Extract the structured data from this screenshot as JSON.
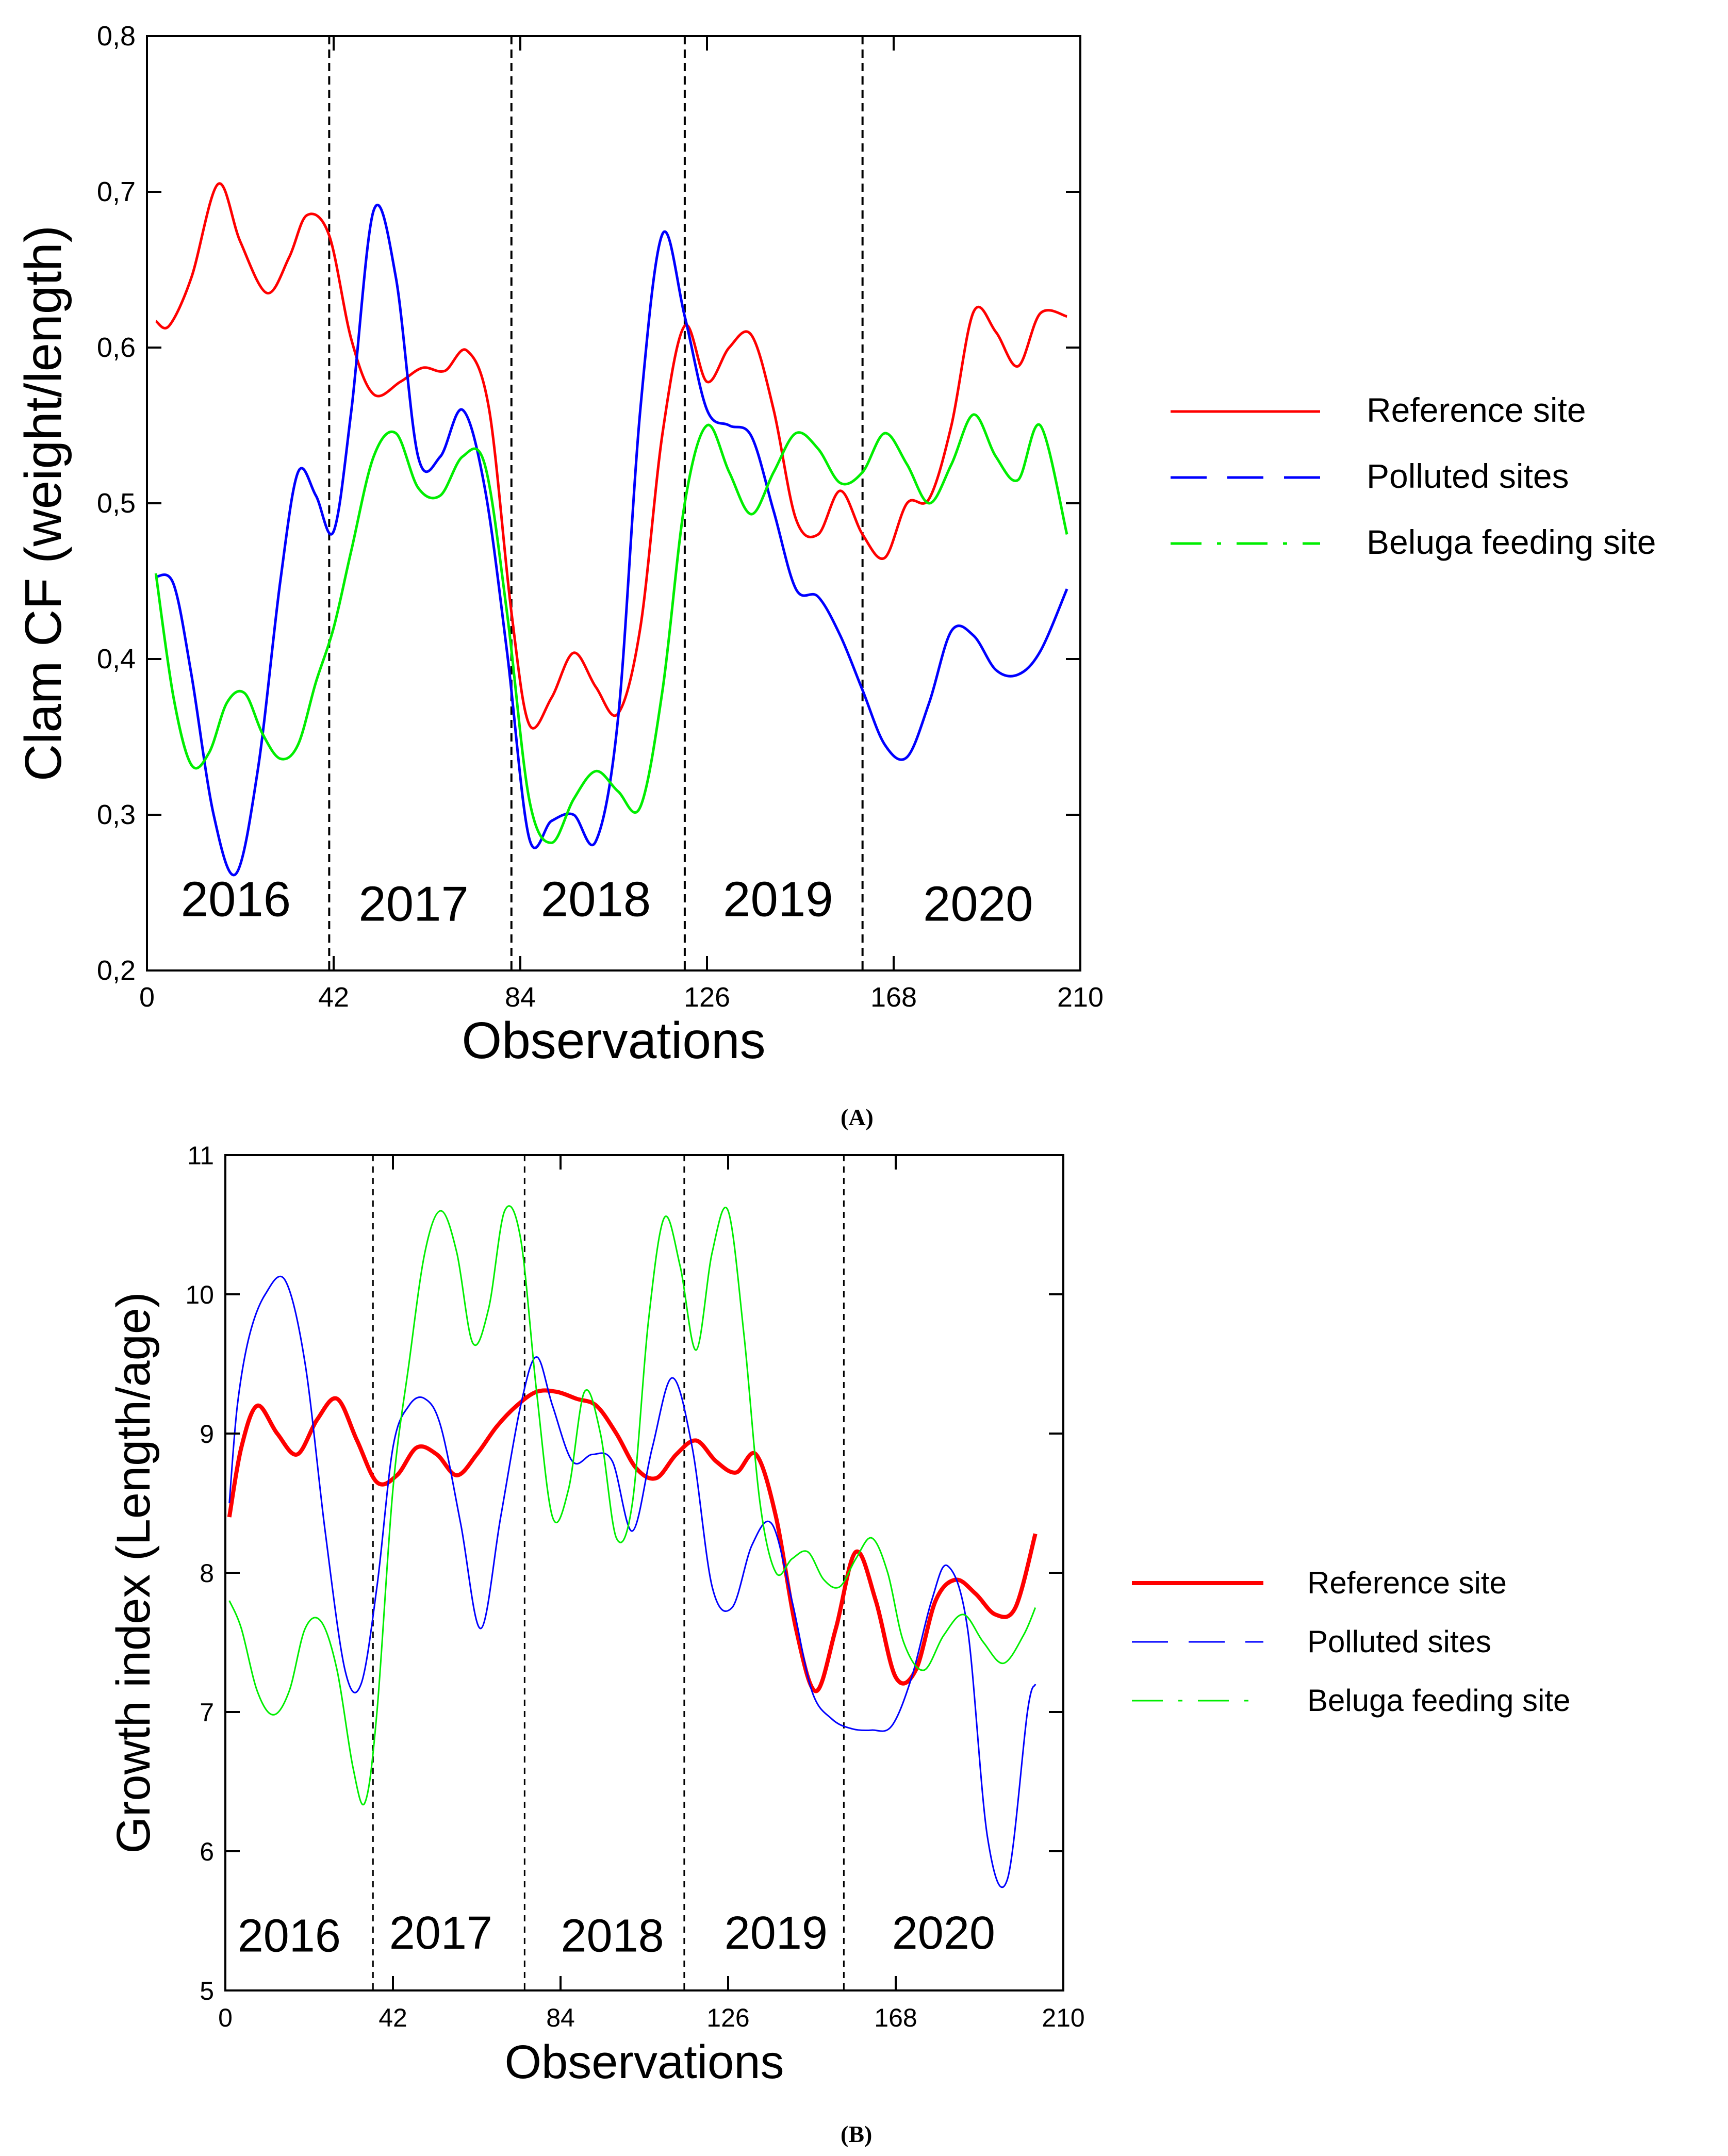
{
  "figure": {
    "panel_a_label": "(A)",
    "panel_b_label": "(B)"
  },
  "chart_data": [
    {
      "type": "line",
      "panel": "A",
      "xlabel": "Observations",
      "ylabel": "Clam CF (weight/length)",
      "xlim": [
        0,
        210
      ],
      "ylim": [
        0.2,
        0.8
      ],
      "xticks": [
        0,
        42,
        84,
        126,
        168,
        210
      ],
      "xtick_labels": [
        "0",
        "42",
        "84",
        "126",
        "168",
        "210"
      ],
      "yticks": [
        0.2,
        0.3,
        0.4,
        0.5,
        0.6,
        0.7,
        0.8
      ],
      "ytick_labels": [
        "0,2",
        "0,3",
        "0,4",
        "0,5",
        "0,6",
        "0,7",
        "0,8"
      ],
      "year_boundaries": [
        41,
        82,
        121,
        161
      ],
      "year_labels": [
        {
          "text": "2016",
          "x": 20,
          "y": 0.235
        },
        {
          "text": "2017",
          "x": 60,
          "y": 0.232
        },
        {
          "text": "2018",
          "x": 101,
          "y": 0.235
        },
        {
          "text": "2019",
          "x": 142,
          "y": 0.235
        },
        {
          "text": "2020",
          "x": 187,
          "y": 0.232
        }
      ],
      "legend": {
        "position": "right",
        "entries": [
          {
            "label": "Reference site",
            "color": "#ff0000",
            "dash": "solid"
          },
          {
            "label": "Polluted sites",
            "color": "#0000ff",
            "dash": "long-dash"
          },
          {
            "label": "Beluga feeding site",
            "color": "#00ee00",
            "dash": "dash-dot"
          }
        ]
      },
      "series": [
        {
          "name": "Reference site",
          "color": "#ff0000",
          "x": [
            2,
            5,
            10,
            16,
            21,
            27,
            32,
            36,
            41,
            46,
            51,
            57,
            62,
            67,
            72,
            77,
            82,
            86,
            91,
            96,
            101,
            106,
            111,
            116,
            121,
            126,
            131,
            136,
            141,
            146,
            151,
            156,
            161,
            166,
            171,
            176,
            181,
            186,
            191,
            196,
            201,
            207
          ],
          "y": [
            0.617,
            0.614,
            0.645,
            0.705,
            0.668,
            0.635,
            0.658,
            0.685,
            0.672,
            0.605,
            0.57,
            0.578,
            0.587,
            0.585,
            0.598,
            0.56,
            0.43,
            0.358,
            0.375,
            0.404,
            0.382,
            0.365,
            0.42,
            0.545,
            0.614,
            0.578,
            0.6,
            0.608,
            0.56,
            0.49,
            0.48,
            0.508,
            0.48,
            0.465,
            0.5,
            0.503,
            0.55,
            0.623,
            0.61,
            0.588,
            0.622,
            0.62
          ]
        },
        {
          "name": "Polluted sites",
          "color": "#0000ff",
          "x": [
            2,
            6,
            10,
            15,
            20,
            25,
            30,
            34,
            38,
            42,
            46,
            51,
            56,
            61,
            66,
            71,
            76,
            81,
            86,
            91,
            96,
            101,
            106,
            111,
            116,
            121,
            126,
            131,
            136,
            141,
            146,
            151,
            156,
            161,
            166,
            171,
            176,
            181,
            186,
            191,
            196,
            201,
            207
          ],
          "y": [
            0.453,
            0.448,
            0.39,
            0.3,
            0.262,
            0.33,
            0.45,
            0.52,
            0.505,
            0.482,
            0.56,
            0.688,
            0.645,
            0.53,
            0.53,
            0.56,
            0.51,
            0.405,
            0.285,
            0.296,
            0.3,
            0.283,
            0.362,
            0.56,
            0.673,
            0.62,
            0.56,
            0.55,
            0.543,
            0.495,
            0.445,
            0.44,
            0.415,
            0.38,
            0.345,
            0.337,
            0.372,
            0.418,
            0.415,
            0.393,
            0.39,
            0.405,
            0.445
          ]
        },
        {
          "name": "Beluga feeding site",
          "color": "#00ee00",
          "x": [
            2,
            6,
            10,
            14,
            18,
            22,
            26,
            30,
            34,
            38,
            42,
            46,
            51,
            56,
            61,
            66,
            71,
            76,
            81,
            86,
            91,
            96,
            101,
            106,
            111,
            116,
            121,
            126,
            131,
            136,
            141,
            146,
            151,
            156,
            161,
            166,
            171,
            176,
            181,
            186,
            191,
            196,
            201,
            207
          ],
          "y": [
            0.455,
            0.375,
            0.332,
            0.34,
            0.372,
            0.378,
            0.352,
            0.336,
            0.345,
            0.385,
            0.42,
            0.47,
            0.53,
            0.545,
            0.51,
            0.505,
            0.53,
            0.525,
            0.43,
            0.31,
            0.282,
            0.31,
            0.328,
            0.315,
            0.305,
            0.38,
            0.5,
            0.55,
            0.52,
            0.493,
            0.52,
            0.545,
            0.535,
            0.513,
            0.52,
            0.545,
            0.525,
            0.5,
            0.525,
            0.557,
            0.53,
            0.515,
            0.55,
            0.48
          ]
        }
      ]
    },
    {
      "type": "line",
      "panel": "B",
      "xlabel": "Observations",
      "ylabel": "Growth index (Length/age)",
      "xlim": [
        0,
        210
      ],
      "ylim": [
        5,
        11
      ],
      "xticks": [
        0,
        42,
        84,
        126,
        168,
        210
      ],
      "xtick_labels": [
        "0",
        "42",
        "84",
        "126",
        "168",
        "210"
      ],
      "yticks": [
        5,
        6,
        7,
        8,
        9,
        10,
        11
      ],
      "ytick_labels": [
        "5",
        "6",
        "7",
        "8",
        "9",
        "10",
        "11"
      ],
      "year_boundaries": [
        37,
        75,
        115,
        155
      ],
      "year_labels": [
        {
          "text": "2016",
          "x": 16,
          "y": 5.28
        },
        {
          "text": "2017",
          "x": 54,
          "y": 5.3
        },
        {
          "text": "2018",
          "x": 97,
          "y": 5.28
        },
        {
          "text": "2019",
          "x": 138,
          "y": 5.3
        },
        {
          "text": "2020",
          "x": 180,
          "y": 5.3
        }
      ],
      "legend": {
        "position": "right",
        "entries": [
          {
            "label": "Reference site",
            "color": "#ff0000",
            "dash": "solid"
          },
          {
            "label": "Polluted sites",
            "color": "#0000ff",
            "dash": "long-dash"
          },
          {
            "label": "Beluga feeding site",
            "color": "#00ee00",
            "dash": "dash-dot"
          }
        ]
      },
      "series": [
        {
          "name": "Reference site",
          "color": "#ff0000",
          "x": [
            1,
            4,
            8,
            13,
            18,
            23,
            28,
            33,
            38,
            43,
            48,
            53,
            58,
            63,
            68,
            73,
            78,
            83,
            88,
            93,
            98,
            103,
            108,
            113,
            118,
            123,
            128,
            133,
            138,
            143,
            148,
            153,
            158,
            163,
            168,
            173,
            178,
            183,
            188,
            193,
            198,
            203
          ],
          "y": [
            8.4,
            8.9,
            9.2,
            9.0,
            8.85,
            9.1,
            9.25,
            8.95,
            8.65,
            8.7,
            8.9,
            8.85,
            8.7,
            8.85,
            9.05,
            9.2,
            9.3,
            9.3,
            9.25,
            9.2,
            9.0,
            8.75,
            8.68,
            8.85,
            8.95,
            8.8,
            8.72,
            8.85,
            8.4,
            7.6,
            7.15,
            7.6,
            8.15,
            7.8,
            7.25,
            7.3,
            7.8,
            7.95,
            7.85,
            7.7,
            7.75,
            8.28
          ]
        },
        {
          "name": "Polluted sites",
          "color": "#0000ff",
          "x": [
            1,
            3,
            6,
            10,
            15,
            20,
            25,
            30,
            34,
            38,
            42,
            46,
            50,
            54,
            59,
            64,
            69,
            74,
            78,
            82,
            87,
            92,
            97,
            102,
            107,
            112,
            117,
            122,
            127,
            132,
            137,
            142,
            147,
            152,
            157,
            162,
            167,
            172,
            177,
            181,
            186,
            191,
            196,
            201,
            203
          ],
          "y": [
            8.5,
            9.2,
            9.7,
            10.0,
            10.1,
            9.5,
            8.3,
            7.3,
            7.2,
            7.9,
            8.9,
            9.2,
            9.25,
            9.05,
            8.35,
            7.6,
            8.4,
            9.2,
            9.55,
            9.2,
            8.8,
            8.85,
            8.8,
            8.3,
            8.9,
            9.4,
            8.9,
            7.9,
            7.75,
            8.2,
            8.35,
            7.8,
            7.15,
            6.95,
            6.88,
            6.87,
            6.9,
            7.25,
            7.8,
            8.05,
            7.6,
            6.1,
            5.8,
            7.0,
            7.2
          ]
        },
        {
          "name": "Beluga feeding site",
          "color": "#00ee00",
          "x": [
            1,
            4,
            8,
            12,
            16,
            20,
            24,
            28,
            32,
            35,
            38,
            42,
            46,
            50,
            54,
            58,
            62,
            66,
            70,
            74,
            78,
            82,
            86,
            90,
            94,
            98,
            102,
            106,
            110,
            114,
            118,
            122,
            126,
            130,
            134,
            138,
            142,
            146,
            150,
            154,
            158,
            162,
            166,
            170,
            175,
            180,
            185,
            190,
            195,
            200,
            203
          ],
          "y": [
            7.8,
            7.6,
            7.15,
            6.98,
            7.15,
            7.6,
            7.65,
            7.3,
            6.6,
            6.35,
            7.0,
            8.6,
            9.5,
            10.3,
            10.6,
            10.3,
            9.65,
            9.9,
            10.6,
            10.4,
            9.3,
            8.4,
            8.6,
            9.3,
            9.0,
            8.25,
            8.5,
            9.8,
            10.55,
            10.2,
            9.6,
            10.3,
            10.6,
            9.7,
            8.5,
            8.0,
            8.1,
            8.15,
            7.95,
            7.9,
            8.1,
            8.25,
            8.0,
            7.5,
            7.3,
            7.55,
            7.7,
            7.5,
            7.35,
            7.55,
            7.75
          ]
        }
      ]
    }
  ]
}
